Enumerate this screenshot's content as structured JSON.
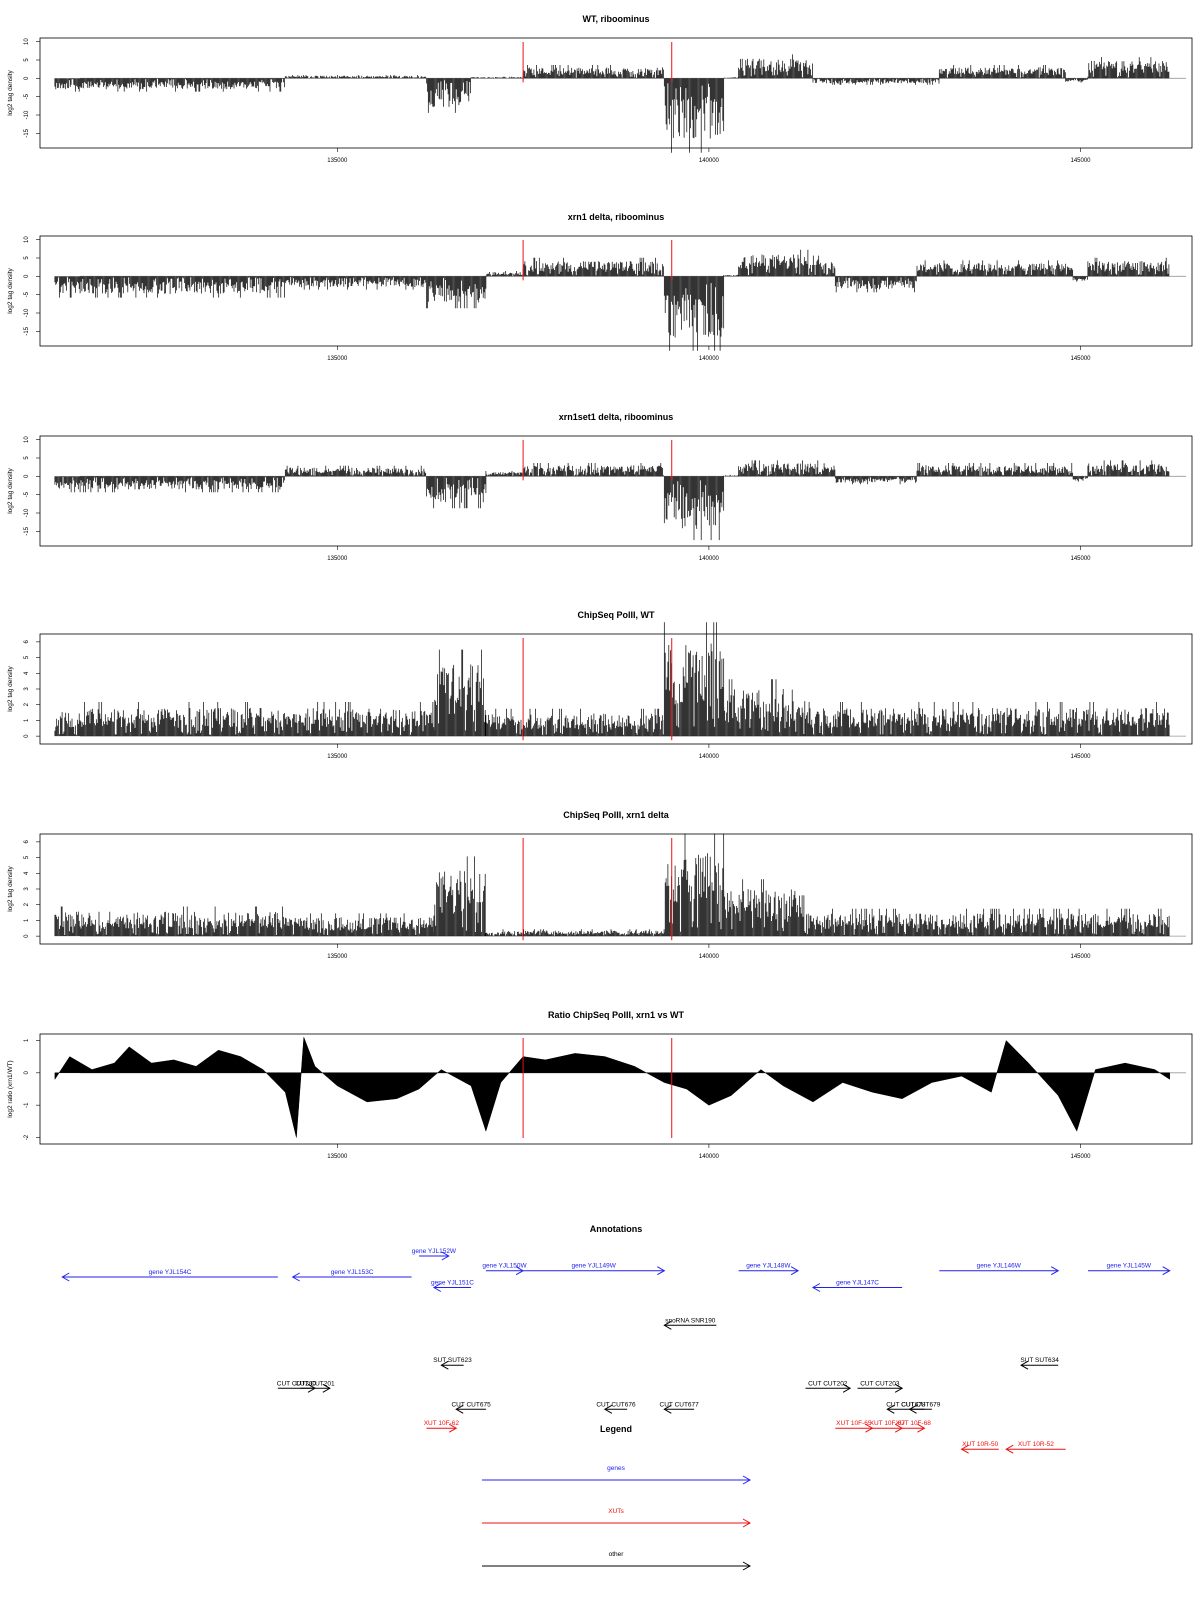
{
  "colors": {
    "genes": "#2222ee",
    "xuts": "#ee1111",
    "other": "#000000",
    "marker": "#ee1111",
    "baseline": "#999999",
    "frame": "#000000"
  },
  "chart_data": [
    {
      "type": "bar",
      "title": "WT, riboominus",
      "ylabel": "log2 tag density",
      "xlim": [
        131000,
        146500
      ],
      "ylim": [
        -19,
        11
      ],
      "yticks": [
        10,
        5,
        0,
        -5,
        -10,
        -15
      ],
      "xticks": [
        135000,
        140000,
        145000
      ],
      "marker_x": [
        137500,
        139500
      ],
      "segments": [
        {
          "x0": 131200,
          "x1": 134300,
          "y": -2.5
        },
        {
          "x0": 134300,
          "x1": 136200,
          "y": 0.6
        },
        {
          "x0": 136200,
          "x1": 136800,
          "y": -6.5
        },
        {
          "x0": 136800,
          "x1": 137500,
          "y": 0.3
        },
        {
          "x0": 137500,
          "x1": 139400,
          "y": 2.5
        },
        {
          "x0": 139400,
          "x1": 140200,
          "y": -14
        },
        {
          "x0": 140200,
          "x1": 140400,
          "y": 0.3
        },
        {
          "x0": 140400,
          "x1": 141400,
          "y": 4.5
        },
        {
          "x0": 141400,
          "x1": 143100,
          "y": -1.2
        },
        {
          "x0": 143100,
          "x1": 144800,
          "y": 2.5
        },
        {
          "x0": 144800,
          "x1": 145100,
          "y": -0.8
        },
        {
          "x0": 145100,
          "x1": 146200,
          "y": 4
        }
      ]
    },
    {
      "type": "bar",
      "title": "xrn1 delta, riboominus",
      "ylabel": "log2 tag density",
      "xlim": [
        131000,
        146500
      ],
      "ylim": [
        -19,
        11
      ],
      "yticks": [
        10,
        5,
        0,
        -5,
        -10,
        -15
      ],
      "xticks": [
        135000,
        140000,
        145000
      ],
      "marker_x": [
        137500,
        139500
      ],
      "segments": [
        {
          "x0": 131200,
          "x1": 134300,
          "y": -4
        },
        {
          "x0": 134300,
          "x1": 136200,
          "y": -2.5
        },
        {
          "x0": 136200,
          "x1": 137000,
          "y": -6
        },
        {
          "x0": 137000,
          "x1": 137500,
          "y": 1
        },
        {
          "x0": 137500,
          "x1": 139400,
          "y": 3.5
        },
        {
          "x0": 139400,
          "x1": 140200,
          "y": -14
        },
        {
          "x0": 140200,
          "x1": 140400,
          "y": 0.3
        },
        {
          "x0": 140400,
          "x1": 141700,
          "y": 5
        },
        {
          "x0": 141700,
          "x1": 142800,
          "y": -3
        },
        {
          "x0": 142800,
          "x1": 144900,
          "y": 3
        },
        {
          "x0": 144900,
          "x1": 145100,
          "y": -1
        },
        {
          "x0": 145100,
          "x1": 146200,
          "y": 3.5
        }
      ]
    },
    {
      "type": "bar",
      "title": "xrn1set1 delta, riboominus",
      "ylabel": "log2 tag density",
      "xlim": [
        131000,
        146500
      ],
      "ylim": [
        -19,
        11
      ],
      "yticks": [
        10,
        5,
        0,
        -5,
        -10,
        -15
      ],
      "xticks": [
        135000,
        140000,
        145000
      ],
      "marker_x": [
        137500,
        139500
      ],
      "segments": [
        {
          "x0": 131200,
          "x1": 134300,
          "y": -3
        },
        {
          "x0": 134300,
          "x1": 136200,
          "y": 2
        },
        {
          "x0": 136200,
          "x1": 137000,
          "y": -6
        },
        {
          "x0": 137000,
          "x1": 137500,
          "y": 1
        },
        {
          "x0": 137500,
          "x1": 139400,
          "y": 2.5
        },
        {
          "x0": 139400,
          "x1": 140200,
          "y": -12
        },
        {
          "x0": 140200,
          "x1": 140400,
          "y": 0.3
        },
        {
          "x0": 140400,
          "x1": 141700,
          "y": 3
        },
        {
          "x0": 141700,
          "x1": 142800,
          "y": -1.5
        },
        {
          "x0": 142800,
          "x1": 144900,
          "y": 2.5
        },
        {
          "x0": 144900,
          "x1": 145100,
          "y": -1
        },
        {
          "x0": 145100,
          "x1": 146200,
          "y": 3
        }
      ]
    },
    {
      "type": "bar",
      "title": "ChipSeq PolII, WT",
      "ylabel": "log2 tag density",
      "xlim": [
        131000,
        146500
      ],
      "ylim": [
        -0.5,
        6.5
      ],
      "yticks": [
        0,
        1,
        2,
        3,
        4,
        5,
        6
      ],
      "xticks": [
        135000,
        140000,
        145000
      ],
      "marker_x": [
        137500,
        139500
      ],
      "segments": [
        {
          "x0": 131200,
          "x1": 134300,
          "y": 1.5
        },
        {
          "x0": 134300,
          "x1": 136300,
          "y": 1.5
        },
        {
          "x0": 136300,
          "x1": 137000,
          "y": 3.8
        },
        {
          "x0": 137000,
          "x1": 139400,
          "y": 1.2
        },
        {
          "x0": 139400,
          "x1": 140200,
          "y": 5
        },
        {
          "x0": 140200,
          "x1": 141300,
          "y": 2.5
        },
        {
          "x0": 141300,
          "x1": 146200,
          "y": 1.5
        }
      ]
    },
    {
      "type": "bar",
      "title": "ChipSeq PolII, xrn1 delta",
      "ylabel": "log2 tag density",
      "xlim": [
        131000,
        146500
      ],
      "ylim": [
        -0.5,
        6.5
      ],
      "yticks": [
        0,
        1,
        2,
        3,
        4,
        5,
        6
      ],
      "xticks": [
        135000,
        140000,
        145000
      ],
      "marker_x": [
        137500,
        139500
      ],
      "segments": [
        {
          "x0": 131200,
          "x1": 134300,
          "y": 1.3
        },
        {
          "x0": 134300,
          "x1": 136300,
          "y": 1
        },
        {
          "x0": 136300,
          "x1": 137000,
          "y": 3.5
        },
        {
          "x0": 137000,
          "x1": 139400,
          "y": 0.3
        },
        {
          "x0": 139400,
          "x1": 140200,
          "y": 4.5
        },
        {
          "x0": 140200,
          "x1": 141300,
          "y": 2.5
        },
        {
          "x0": 141300,
          "x1": 146200,
          "y": 1.2
        }
      ]
    },
    {
      "type": "area",
      "title": "Ratio ChipSeq PolII, xrn1 vs WT",
      "ylabel": "log2 ratio (xrn1/WT)",
      "xlim": [
        131000,
        146500
      ],
      "ylim": [
        -2.2,
        1.2
      ],
      "yticks": [
        1.0,
        0.0,
        -1.0,
        -2.0
      ],
      "xticks": [
        135000,
        140000,
        145000
      ],
      "marker_x": [
        137500,
        139500
      ],
      "points": [
        [
          131200,
          -0.2
        ],
        [
          131400,
          0.5
        ],
        [
          131700,
          0.1
        ],
        [
          132000,
          0.3
        ],
        [
          132200,
          0.8
        ],
        [
          132500,
          0.3
        ],
        [
          132800,
          0.4
        ],
        [
          133100,
          0.2
        ],
        [
          133400,
          0.7
        ],
        [
          133700,
          0.5
        ],
        [
          134000,
          0.1
        ],
        [
          134300,
          -0.6
        ],
        [
          134450,
          -2
        ],
        [
          134550,
          1.1
        ],
        [
          134700,
          0.2
        ],
        [
          135000,
          -0.4
        ],
        [
          135400,
          -0.9
        ],
        [
          135800,
          -0.8
        ],
        [
          136100,
          -0.5
        ],
        [
          136400,
          0.1
        ],
        [
          136800,
          -0.4
        ],
        [
          137000,
          -1.8
        ],
        [
          137200,
          -0.3
        ],
        [
          137500,
          0.5
        ],
        [
          137800,
          0.4
        ],
        [
          138200,
          0.6
        ],
        [
          138600,
          0.5
        ],
        [
          139000,
          0.2
        ],
        [
          139400,
          -0.3
        ],
        [
          139700,
          -0.5
        ],
        [
          140000,
          -1
        ],
        [
          140300,
          -0.7
        ],
        [
          140700,
          0.1
        ],
        [
          141000,
          -0.4
        ],
        [
          141400,
          -0.9
        ],
        [
          141800,
          -0.3
        ],
        [
          142200,
          -0.6
        ],
        [
          142600,
          -0.8
        ],
        [
          143000,
          -0.3
        ],
        [
          143400,
          -0.1
        ],
        [
          143800,
          -0.6
        ],
        [
          144000,
          1
        ],
        [
          144300,
          0.3
        ],
        [
          144700,
          -0.7
        ],
        [
          144950,
          -1.8
        ],
        [
          145200,
          0.1
        ],
        [
          145600,
          0.3
        ],
        [
          146000,
          0.1
        ],
        [
          146200,
          -0.2
        ]
      ]
    }
  ],
  "annotations": {
    "title": "Annotations",
    "xlim": [
      131000,
      146500
    ],
    "features": [
      {
        "label": "gene YJL154C",
        "type": "genes",
        "x0": 131300,
        "x1": 134200,
        "dir": "left",
        "row": 0
      },
      {
        "label": "gene YJL153C",
        "type": "genes",
        "x0": 134400,
        "x1": 136000,
        "dir": "left",
        "row": 0
      },
      {
        "label": "gene YJL152W",
        "type": "genes",
        "x0": 136100,
        "x1": 136500,
        "dir": "right",
        "row": -1
      },
      {
        "label": "gene YJL151C",
        "type": "genes",
        "x0": 136300,
        "x1": 136800,
        "dir": "left",
        "row": 0.5
      },
      {
        "label": "gene YJL150W",
        "type": "genes",
        "x0": 137000,
        "x1": 137500,
        "dir": "right",
        "row": -0.3
      },
      {
        "label": "gene YJL149W",
        "type": "genes",
        "x0": 137500,
        "x1": 139400,
        "dir": "right",
        "row": -0.3
      },
      {
        "label": "gene YJL148W",
        "type": "genes",
        "x0": 140400,
        "x1": 141200,
        "dir": "right",
        "row": -0.3
      },
      {
        "label": "gene YJL147C",
        "type": "genes",
        "x0": 141400,
        "x1": 142600,
        "dir": "left",
        "row": 0.5
      },
      {
        "label": "gene YJL146W",
        "type": "genes",
        "x0": 143100,
        "x1": 144700,
        "dir": "right",
        "row": -0.3
      },
      {
        "label": "gene YJL145W",
        "type": "genes",
        "x0": 145100,
        "x1": 146200,
        "dir": "right",
        "row": -0.3
      },
      {
        "label": "snoRNA SNR190",
        "type": "other",
        "x0": 139400,
        "x1": 140100,
        "dir": "left",
        "row": 2.3
      },
      {
        "label": "SUT SUT623",
        "type": "other",
        "x0": 136400,
        "x1": 136700,
        "dir": "left",
        "row": 4.2
      },
      {
        "label": "SUT SUT634",
        "type": "other",
        "x0": 144200,
        "x1": 144700,
        "dir": "left",
        "row": 4.2
      },
      {
        "label": "CUT CUT200",
        "type": "other",
        "x0": 134200,
        "x1": 134700,
        "dir": "right",
        "row": 5.3
      },
      {
        "label": "CUT CUT201",
        "type": "other",
        "x0": 134500,
        "x1": 134900,
        "dir": "right",
        "row": 5.3
      },
      {
        "label": "CUT CUT675",
        "type": "other",
        "x0": 136600,
        "x1": 137000,
        "dir": "left",
        "row": 6.3
      },
      {
        "label": "CUT CUT676",
        "type": "other",
        "x0": 138600,
        "x1": 138900,
        "dir": "left",
        "row": 6.3
      },
      {
        "label": "CUT CUT677",
        "type": "other",
        "x0": 139400,
        "x1": 139800,
        "dir": "left",
        "row": 6.3
      },
      {
        "label": "CUT CUT202",
        "type": "other",
        "x0": 141300,
        "x1": 141900,
        "dir": "right",
        "row": 5.3
      },
      {
        "label": "CUT CUT203",
        "type": "other",
        "x0": 142000,
        "x1": 142600,
        "dir": "right",
        "row": 5.3
      },
      {
        "label": "CUT CUT678",
        "type": "other",
        "x0": 142400,
        "x1": 142900,
        "dir": "left",
        "row": 6.3
      },
      {
        "label": "CUT CUT679",
        "type": "other",
        "x0": 142700,
        "x1": 143000,
        "dir": "left",
        "row": 6.3
      },
      {
        "label": "XUT 10F-62",
        "type": "xuts",
        "x0": 136200,
        "x1": 136600,
        "dir": "right",
        "row": 7.2
      },
      {
        "label": "XUT 10F-65",
        "type": "xuts",
        "x0": 141700,
        "x1": 142200,
        "dir": "right",
        "row": 7.2
      },
      {
        "label": "XUT 10F-67",
        "type": "xuts",
        "x0": 142200,
        "x1": 142600,
        "dir": "right",
        "row": 7.2
      },
      {
        "label": "XUT 10F-68",
        "type": "xuts",
        "x0": 142600,
        "x1": 142900,
        "dir": "right",
        "row": 7.2
      },
      {
        "label": "XUT 10R-50",
        "type": "xuts",
        "x0": 143400,
        "x1": 143900,
        "dir": "left",
        "row": 8.2
      },
      {
        "label": "XUT 10R-52",
        "type": "xuts",
        "x0": 144000,
        "x1": 144800,
        "dir": "left",
        "row": 8.2
      }
    ]
  },
  "legend": {
    "title": "Legend",
    "items": [
      {
        "label": "genes",
        "type": "genes"
      },
      {
        "label": "XUTs",
        "type": "xuts"
      },
      {
        "label": "other",
        "type": "other"
      }
    ]
  }
}
